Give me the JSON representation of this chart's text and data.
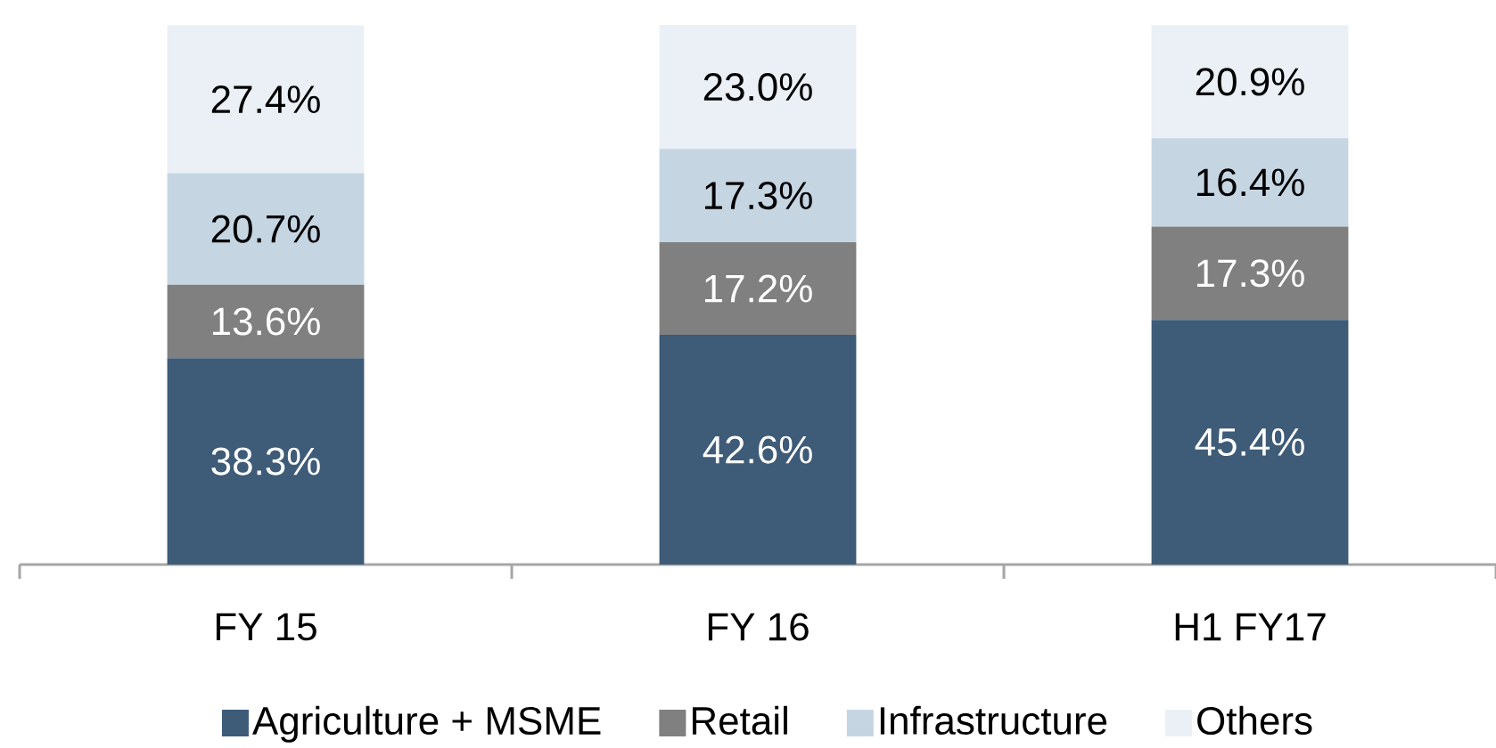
{
  "chart_data": {
    "type": "bar",
    "stacked": true,
    "categories": [
      "FY 15",
      "FY 16",
      "H1 FY17"
    ],
    "series": [
      {
        "name": "Agriculture + MSME",
        "color": "#3e5b78",
        "values": [
          38.3,
          42.6,
          45.4
        ],
        "value_labels": [
          "38.3%",
          "42.6%",
          "45.4%"
        ]
      },
      {
        "name": "Retail",
        "color": "#808080",
        "values": [
          13.6,
          17.2,
          17.3
        ],
        "value_labels": [
          "13.6%",
          "17.2%",
          "17.3%"
        ]
      },
      {
        "name": "Infrastructure",
        "color": "#c5d5e2",
        "values": [
          20.7,
          17.3,
          16.4
        ],
        "value_labels": [
          "20.7%",
          "17.3%",
          "16.4%"
        ]
      },
      {
        "name": "Others",
        "color": "#eaf0f5",
        "values": [
          27.4,
          23.0,
          20.9
        ],
        "value_labels": [
          "27.4%",
          "23.0%",
          "20.9%"
        ]
      }
    ],
    "legend": "bottom",
    "tick_labels": "x"
  }
}
